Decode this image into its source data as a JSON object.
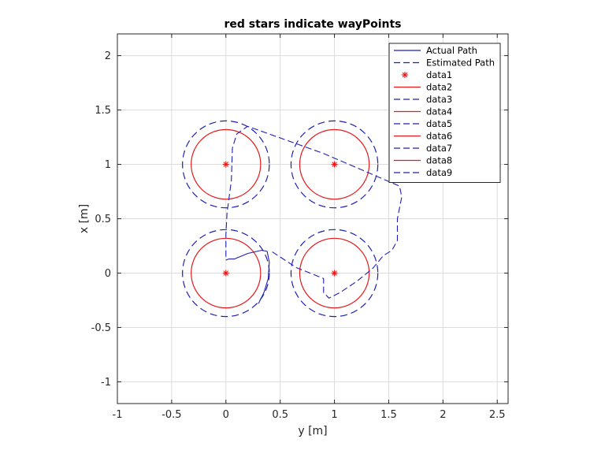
{
  "chart_data": {
    "type": "line",
    "title": "red stars indicate wayPoints",
    "xlabel": "y [m]",
    "ylabel": "x [m]",
    "xlim": [
      -1,
      2.6
    ],
    "ylim": [
      -1.2,
      2.2
    ],
    "xticks": [
      -1,
      -0.5,
      0,
      0.5,
      1,
      1.5,
      2,
      2.5
    ],
    "yticks": [
      -1,
      -0.5,
      0,
      0.5,
      1,
      1.5,
      2
    ],
    "xtick_labels": [
      "-1",
      "-0.5",
      "0",
      "0.5",
      "1",
      "1.5",
      "2",
      "2.5"
    ],
    "ytick_labels": [
      "-1",
      "-0.5",
      "0",
      "0.5",
      "1",
      "1.5",
      "2"
    ],
    "grid": true,
    "legend_position": "top-right",
    "colors": {
      "red": "#e41a1c",
      "blue": "#1f1fb4",
      "grid": "#dcdcdc",
      "axis": "#262626"
    },
    "series": [
      {
        "name": "Actual Path",
        "style": "solid",
        "color": "#1f1fb4",
        "x": [
          0.0,
          0.0,
          0.03,
          0.08,
          0.2,
          0.33,
          0.38,
          0.4,
          0.39,
          0.35,
          0.3
        ],
        "y": [
          0.12,
          0.12,
          0.13,
          0.13,
          0.18,
          0.21,
          0.2,
          0.1,
          -0.05,
          -0.18,
          -0.28
        ]
      },
      {
        "name": "Estimated Path",
        "style": "dashed",
        "color": "#1f1fb4",
        "x": [
          0.0,
          0.0,
          0.01,
          0.03,
          0.05,
          0.06,
          0.1,
          0.2,
          0.9,
          1.6,
          1.62,
          1.58,
          1.58,
          1.53,
          1.45,
          1.35,
          1.2,
          1.05,
          0.95,
          0.9,
          0.9,
          0.9,
          0.65,
          0.42,
          0.42
        ],
        "y": [
          0.15,
          0.35,
          0.55,
          0.7,
          0.85,
          1.15,
          1.28,
          1.35,
          1.1,
          0.8,
          0.7,
          0.5,
          0.3,
          0.21,
          0.16,
          0.04,
          -0.08,
          -0.18,
          -0.23,
          -0.18,
          -0.08,
          -0.05,
          0.05,
          0.2,
          0.22
        ]
      },
      {
        "name": "data1",
        "style": "marker",
        "marker": "*",
        "color": "#e41a1c",
        "x": [
          0,
          1,
          0,
          1
        ],
        "y": [
          0,
          0,
          1,
          1
        ]
      }
    ],
    "circles": [
      {
        "name": "data2",
        "style": "solid",
        "color": "#e41a1c",
        "cx": 0,
        "cy": 0,
        "r": 0.32
      },
      {
        "name": "data3",
        "style": "dashed",
        "color": "#1f1fb4",
        "cx": 0,
        "cy": 0,
        "r": 0.4
      },
      {
        "name": "data4",
        "style": "solid",
        "color": "#e41a1c",
        "cx": 1,
        "cy": 0,
        "r": 0.32
      },
      {
        "name": "data5",
        "style": "dashed",
        "color": "#1f1fb4",
        "cx": 1,
        "cy": 0,
        "r": 0.4
      },
      {
        "name": "data6",
        "style": "solid",
        "color": "#e41a1c",
        "cx": 0,
        "cy": 1,
        "r": 0.32
      },
      {
        "name": "data7",
        "style": "dashed",
        "color": "#1f1fb4",
        "cx": 0,
        "cy": 1,
        "r": 0.4
      },
      {
        "name": "data8",
        "style": "solid",
        "color": "#e41a1c",
        "cx": 1,
        "cy": 1,
        "r": 0.32
      },
      {
        "name": "data9",
        "style": "dashed",
        "color": "#1f1fb4",
        "cx": 1,
        "cy": 1,
        "r": 0.4
      }
    ],
    "legend": [
      {
        "label": "Actual Path",
        "style": "solid",
        "color": "#1f1fb4"
      },
      {
        "label": "Estimated Path",
        "style": "dashed",
        "color": "#1f1fb4"
      },
      {
        "label": "data1",
        "style": "marker",
        "color": "#e41a1c"
      },
      {
        "label": "data2",
        "style": "solid",
        "color": "#e41a1c"
      },
      {
        "label": "data3",
        "style": "dashed",
        "color": "#1f1fb4"
      },
      {
        "label": "data4",
        "style": "solid",
        "color": "#e41a1c"
      },
      {
        "label": "data5",
        "style": "dashed",
        "color": "#1f1fb4"
      },
      {
        "label": "data6",
        "style": "solid",
        "color": "#e41a1c"
      },
      {
        "label": "data7",
        "style": "dashed",
        "color": "#1f1fb4"
      },
      {
        "label": "data8",
        "style": "solid",
        "color": "#e41a1c"
      },
      {
        "label": "data9",
        "style": "dashed",
        "color": "#1f1fb4"
      }
    ]
  }
}
